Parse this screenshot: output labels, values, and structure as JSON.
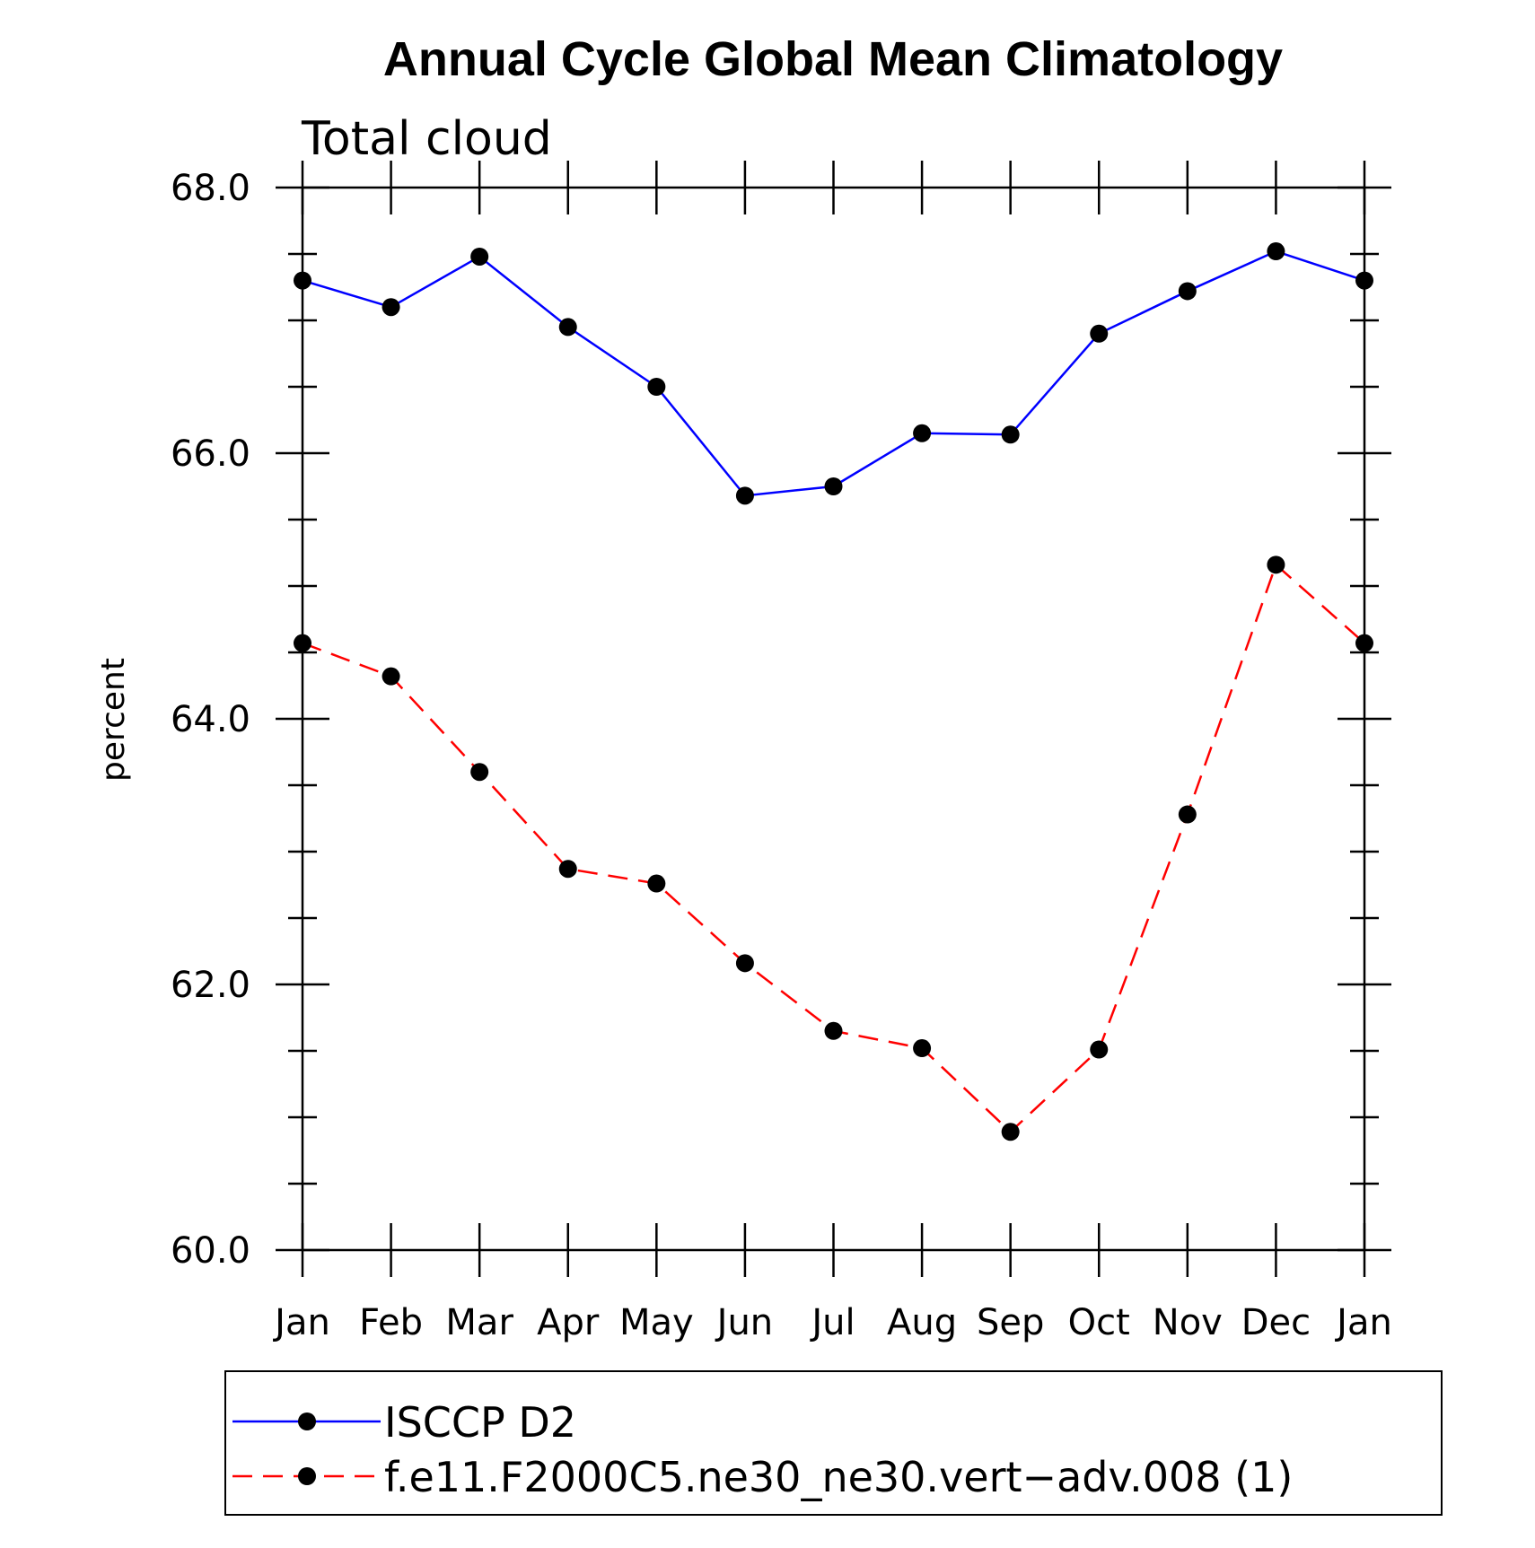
{
  "chart_data": {
    "type": "line",
    "title": "Annual Cycle Global Mean Climatology",
    "subtitle": "Total cloud",
    "xlabel": "",
    "ylabel": "percent",
    "categories": [
      "Jan",
      "Feb",
      "Mar",
      "Apr",
      "May",
      "Jun",
      "Jul",
      "Aug",
      "Sep",
      "Oct",
      "Nov",
      "Dec",
      "Jan"
    ],
    "ylim": [
      60.0,
      68.0
    ],
    "yticks": [
      "60.0",
      "62.0",
      "64.0",
      "66.0",
      "68.0"
    ],
    "grid": false,
    "legend_position": "bottom",
    "series": [
      {
        "name": "ISCCP D2",
        "color": "#0000ff",
        "line_style": "solid",
        "values": [
          67.3,
          67.1,
          67.48,
          66.95,
          66.5,
          65.68,
          65.75,
          66.15,
          66.14,
          66.9,
          67.22,
          67.52,
          67.3
        ]
      },
      {
        "name": "f.e11.F2000C5.ne30_ne30.vert−adv.008 (1)",
        "color": "#ff0000",
        "line_style": "dashed",
        "values": [
          64.57,
          64.32,
          63.6,
          62.87,
          62.76,
          62.16,
          61.65,
          61.52,
          60.89,
          61.51,
          63.28,
          65.16,
          64.57
        ]
      }
    ]
  }
}
